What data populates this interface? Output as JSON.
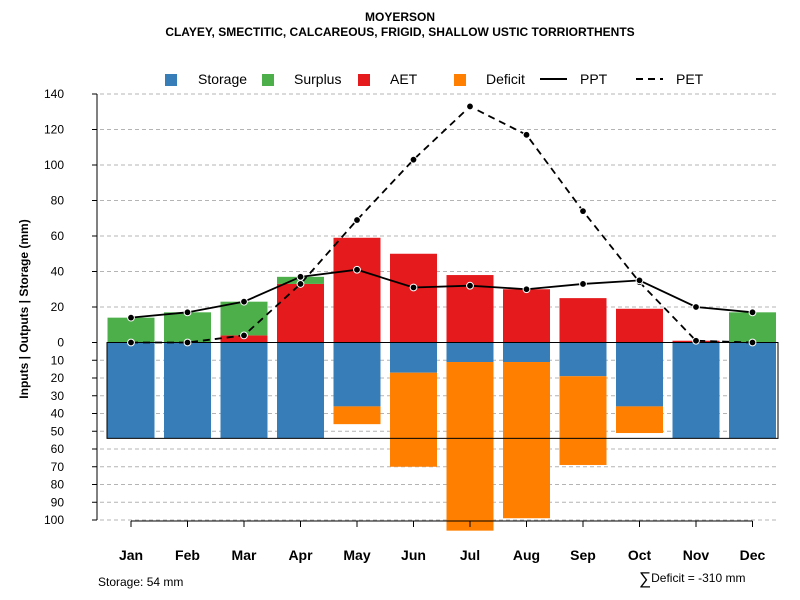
{
  "title_line1": "MOYERSON",
  "title_line2": "CLAYEY, SMECTITIC, CALCAREOUS, FRIGID, SHALLOW USTIC TORRIORTHENTS",
  "storage_note": "Storage: 54 mm",
  "deficit_note": "Deficit = -310 mm",
  "chart_data": {
    "type": "bar",
    "title": "MOYERSON",
    "subtitle": "CLAYEY, SMECTITIC, CALCAREOUS, FRIGID, SHALLOW USTIC TORRIORTHENTS",
    "xlabel": "",
    "ylabel": "Inputs | Outputs | Storage    (mm)",
    "categories": [
      "Jan",
      "Feb",
      "Mar",
      "Apr",
      "May",
      "Jun",
      "Jul",
      "Aug",
      "Sep",
      "Oct",
      "Nov",
      "Dec"
    ],
    "ylim_top": [
      0,
      140
    ],
    "ylim_bottom": [
      0,
      100
    ],
    "yticks_top": [
      0,
      20,
      40,
      60,
      80,
      100,
      120,
      140
    ],
    "yticks_bottom": [
      10,
      20,
      30,
      40,
      50,
      60,
      70,
      80,
      90,
      100
    ],
    "storage_capacity": 54,
    "legend": [
      {
        "label": "Storage",
        "kind": "box",
        "color": "#377EB8"
      },
      {
        "label": "Surplus",
        "kind": "box",
        "color": "#4DAF4A"
      },
      {
        "label": "AET",
        "kind": "box",
        "color": "#E41A1C"
      },
      {
        "label": "Deficit",
        "kind": "box",
        "color": "#FF7F00"
      },
      {
        "label": "PPT",
        "kind": "solid"
      },
      {
        "label": "PET",
        "kind": "dashed"
      }
    ],
    "series": [
      {
        "name": "AET",
        "values": [
          0,
          0,
          4,
          33,
          59,
          50,
          38,
          30,
          25,
          19,
          1,
          0
        ]
      },
      {
        "name": "Surplus",
        "values": [
          14,
          17,
          19,
          4,
          0,
          0,
          0,
          0,
          0,
          0,
          0,
          17
        ]
      },
      {
        "name": "Storage",
        "values": [
          54,
          54,
          54,
          54,
          36,
          17,
          11,
          11,
          19,
          36,
          54,
          54
        ]
      },
      {
        "name": "Deficit",
        "values": [
          0,
          0,
          0,
          0,
          10,
          53,
          95,
          88,
          50,
          15,
          0,
          0
        ]
      },
      {
        "name": "PPT",
        "values": [
          14,
          17,
          23,
          37,
          41,
          31,
          32,
          30,
          33,
          35,
          20,
          17
        ]
      },
      {
        "name": "PET",
        "values": [
          0,
          0,
          4,
          33,
          69,
          103,
          133,
          117,
          74,
          34,
          1,
          0
        ]
      }
    ],
    "colors": {
      "Storage": "#377EB8",
      "Surplus": "#4DAF4A",
      "AET": "#E41A1C",
      "Deficit": "#FF7F00",
      "grid": "#b4b4b4"
    }
  }
}
